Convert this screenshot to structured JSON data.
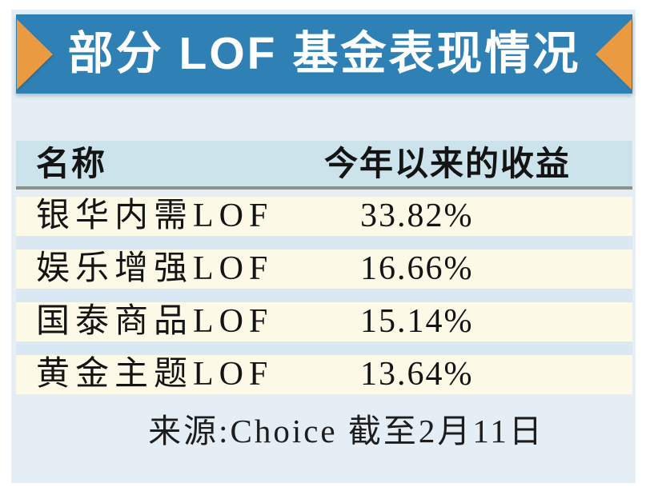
{
  "banner": {
    "title": "部分 LOF 基金表现情况"
  },
  "table": {
    "columns": [
      "名称",
      "今年以来的收益"
    ],
    "rows": [
      {
        "name": "银华内需LOF",
        "value": "33.82%"
      },
      {
        "name": "娱乐增强LOF",
        "value": "16.66%"
      },
      {
        "name": "国泰商品LOF",
        "value": "15.14%"
      },
      {
        "name": "黄金主题LOF",
        "value": "13.64%"
      }
    ]
  },
  "footer": {
    "source": "来源:Choice 截至2月11日"
  },
  "colors": {
    "banner_blue": "#2e80b5",
    "ribbon_orange": "#ea9a41",
    "panel_light_blue": "#e4eef4",
    "header_blue": "#cde3ec",
    "row_cream": "#fcf9e7",
    "stripe_blue": "#d9e8f2",
    "header_rule_gray": "#8f928a",
    "text_black": "#141414"
  },
  "chart_data": {
    "type": "table",
    "title": "部分LOF基金表现情况",
    "columns": [
      "名称",
      "今年以来的收益"
    ],
    "rows": [
      [
        "银华内需LOF",
        "33.82%"
      ],
      [
        "娱乐增强LOF",
        "16.66%"
      ],
      [
        "国泰商品LOF",
        "15.14%"
      ],
      [
        "黄金主题LOF",
        "13.64%"
      ]
    ],
    "categories": [
      "银华内需LOF",
      "娱乐增强LOF",
      "国泰商品LOF",
      "黄金主题LOF"
    ],
    "values": [
      33.82,
      16.66,
      15.14,
      13.64
    ],
    "value_unit": "%",
    "source": "来源:Choice 截至2月11日"
  }
}
